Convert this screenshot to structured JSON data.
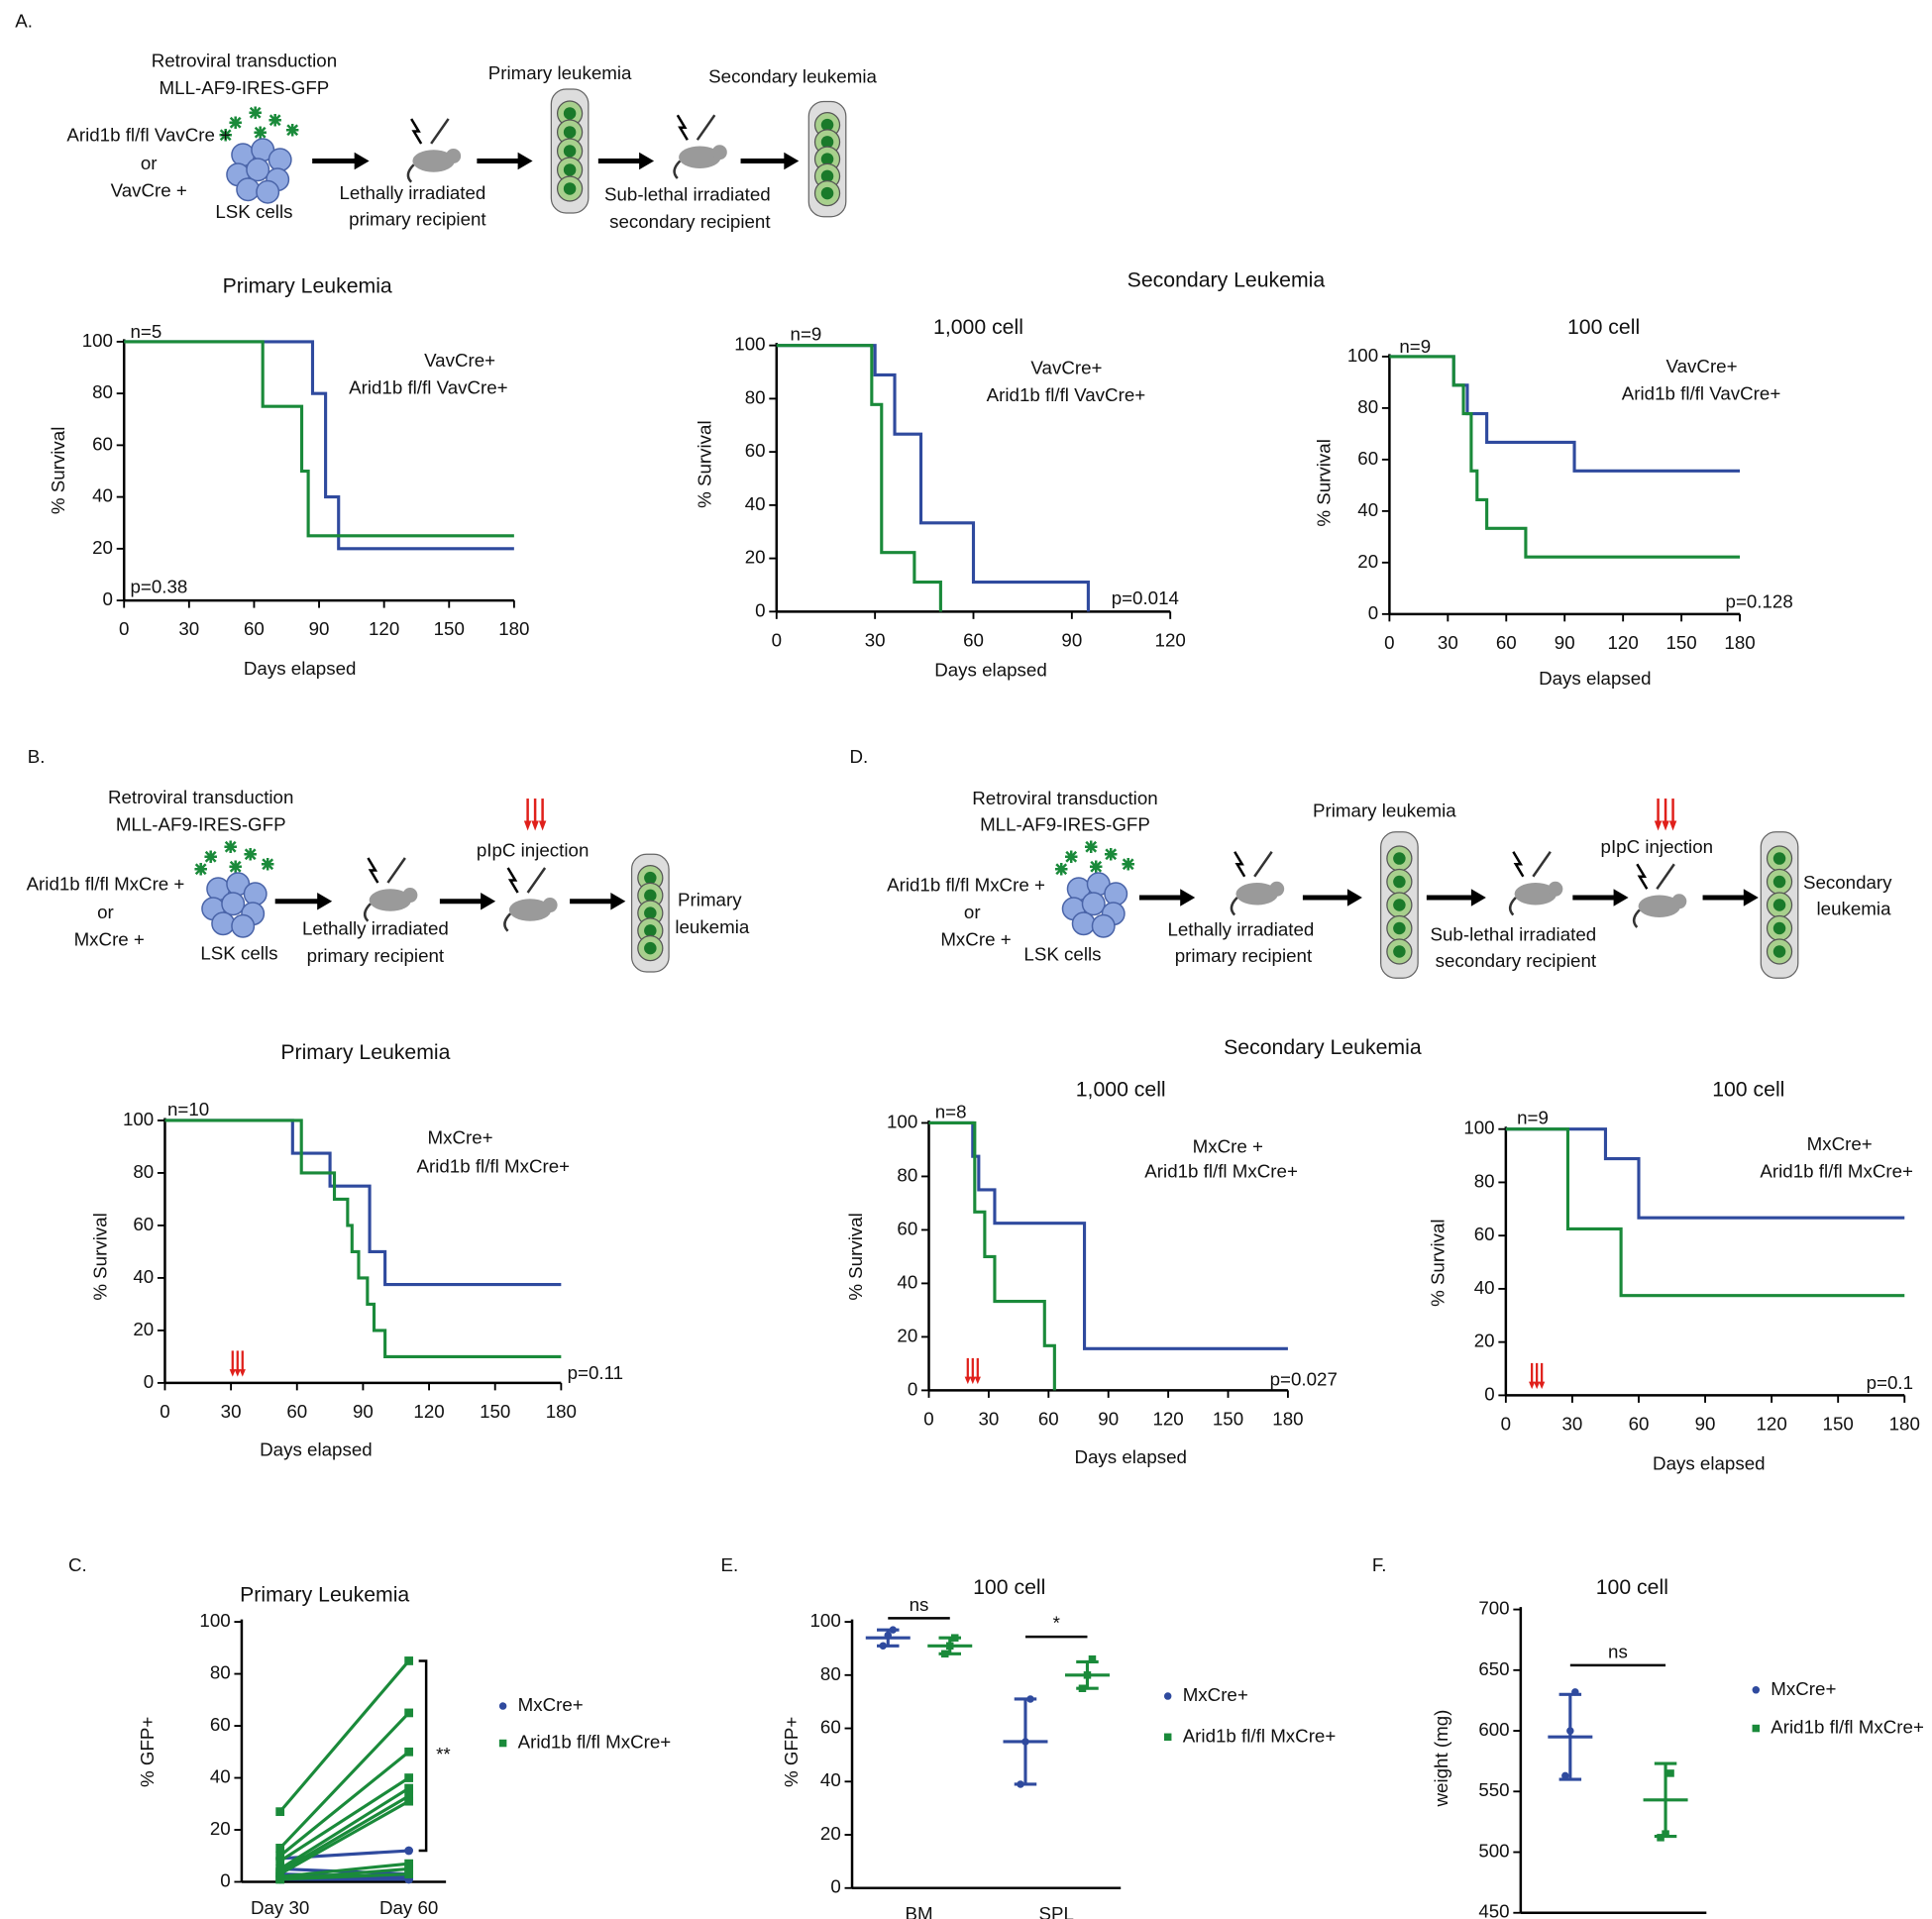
{
  "labels": {
    "panels": [
      "A.",
      "B.",
      "C.",
      "D.",
      "E.",
      "F."
    ],
    "secondary_a": "Secondary Leukemia",
    "secondary_d": "Secondary Leukemia"
  },
  "diagrams": {
    "a": [
      "Retroviral transduction",
      "MLL-AF9-IRES-GFP",
      "Arid1b fl/fl VavCre +",
      "or",
      "VavCre +",
      "LSK cells",
      "Lethally irradiated",
      "primary recipient",
      "Primary leukemia",
      "Secondary leukemia",
      "Sub-lethal irradiated",
      "secondary recipient"
    ],
    "b": [
      "Retroviral transduction",
      "MLL-AF9-IRES-GFP",
      "Arid1b fl/fl MxCre +",
      "or",
      "MxCre +",
      "LSK cells",
      "Lethally irradiated",
      "primary recipient",
      "pIpC injection",
      "Primary",
      "leukemia"
    ],
    "d": [
      "Retroviral transduction",
      "MLL-AF9-IRES-GFP",
      "Arid1b fl/fl MxCre +",
      "or",
      "MxCre +",
      "LSK cells",
      "Lethally irradiated",
      "primary recipient",
      "Primary leukemia",
      "Sub-lethal irradiated",
      "secondary recipient",
      "pIpC injection",
      "Secondary",
      "leukemia"
    ]
  },
  "chart_data": [
    {
      "type": "step",
      "title": "Primary Leukemia",
      "xlabel": "Days elapsed",
      "ylabel": "% Survival",
      "n_label": "n=5",
      "p_label": "p=0.38",
      "xlim": [
        0,
        180
      ],
      "ylim": [
        0,
        100
      ],
      "xticks": [
        0,
        30,
        60,
        90,
        120,
        150,
        180
      ],
      "yticks": [
        0,
        20,
        40,
        60,
        80,
        100
      ],
      "series": [
        {
          "name": "VavCre+",
          "color": "#2f4a9e",
          "x": [
            0,
            87,
            93,
            99,
            180
          ],
          "values": [
            100,
            80,
            40,
            20,
            20
          ]
        },
        {
          "name": "Arid1b fl/fl VavCre+",
          "color": "#1a8a3a",
          "x": [
            0,
            64,
            82,
            85,
            180
          ],
          "values": [
            100,
            75,
            50,
            25,
            25
          ]
        }
      ]
    },
    {
      "type": "step",
      "subtitle": "1,000 cell",
      "xlabel": "Days elapsed",
      "ylabel": "% Survival",
      "n_label": "n=9",
      "p_label": "p=0.014",
      "xlim": [
        0,
        120
      ],
      "ylim": [
        0,
        100
      ],
      "xticks": [
        0,
        30,
        60,
        90,
        120
      ],
      "yticks": [
        0,
        20,
        40,
        60,
        80,
        100
      ],
      "series": [
        {
          "name": "VavCre+",
          "color": "#2f4a9e",
          "x": [
            0,
            30,
            36,
            44,
            60,
            95
          ],
          "values": [
            100,
            88.9,
            66.7,
            33.3,
            11.1,
            0
          ]
        },
        {
          "name": "Arid1b fl/fl VavCre+",
          "color": "#1a8a3a",
          "x": [
            0,
            29,
            32,
            42,
            50
          ],
          "values": [
            100,
            77.8,
            22.2,
            11.1,
            0
          ]
        }
      ]
    },
    {
      "type": "step",
      "subtitle": "100 cell",
      "xlabel": "Days elapsed",
      "ylabel": "% Survival",
      "n_label": "n=9",
      "p_label": "p=0.128",
      "xlim": [
        0,
        180
      ],
      "ylim": [
        0,
        100
      ],
      "xticks": [
        0,
        30,
        60,
        90,
        120,
        150,
        180
      ],
      "yticks": [
        0,
        20,
        40,
        60,
        80,
        100
      ],
      "series": [
        {
          "name": "VavCre+",
          "color": "#2f4a9e",
          "x": [
            0,
            33,
            40,
            50,
            95,
            180
          ],
          "values": [
            100,
            88.9,
            77.8,
            66.7,
            55.6,
            55.6
          ]
        },
        {
          "name": "Arid1b fl/fl VavCre+",
          "color": "#1a8a3a",
          "x": [
            0,
            33,
            38,
            42,
            45,
            50,
            70,
            180
          ],
          "values": [
            100,
            88.9,
            77.8,
            55.6,
            44.4,
            33.3,
            22.2,
            22.2
          ]
        }
      ]
    },
    {
      "type": "step",
      "title": "Primary Leukemia",
      "xlabel": "Days elapsed",
      "ylabel": "% Survival",
      "n_label": "n=10",
      "p_label": "p=0.11",
      "injection_day": 33,
      "xlim": [
        0,
        180
      ],
      "ylim": [
        0,
        100
      ],
      "xticks": [
        0,
        30,
        60,
        90,
        120,
        150,
        180
      ],
      "yticks": [
        0,
        20,
        40,
        60,
        80,
        100
      ],
      "series": [
        {
          "name": "MxCre+",
          "color": "#2f4a9e",
          "x": [
            0,
            58,
            75,
            93,
            100,
            180
          ],
          "values": [
            100,
            87.5,
            75,
            50,
            37.5,
            37.5
          ]
        },
        {
          "name": "Arid1b fl/fl MxCre+",
          "color": "#1a8a3a",
          "x": [
            0,
            62,
            77,
            83,
            85,
            88,
            92,
            95,
            100,
            180
          ],
          "values": [
            100,
            80,
            70,
            60,
            50,
            40,
            30,
            20,
            10,
            10
          ]
        }
      ]
    },
    {
      "type": "step",
      "subtitle": "1,000 cell",
      "xlabel": "Days elapsed",
      "ylabel": "% Survival",
      "n_label": "n=8",
      "p_label": "p=0.027",
      "injection_day": 22,
      "xlim": [
        0,
        180
      ],
      "ylim": [
        0,
        100
      ],
      "xticks": [
        0,
        30,
        60,
        90,
        120,
        150,
        180
      ],
      "yticks": [
        0,
        20,
        40,
        60,
        80,
        100
      ],
      "series": [
        {
          "name": "MxCre +",
          "color": "#2f4a9e",
          "x": [
            0,
            22,
            25,
            33,
            78,
            180
          ],
          "values": [
            100,
            87.5,
            75,
            62.5,
            15.6,
            15.6
          ]
        },
        {
          "name": "Arid1b fl/fl MxCre+",
          "color": "#1a8a3a",
          "x": [
            0,
            23,
            28,
            33,
            58,
            63
          ],
          "values": [
            100,
            66.7,
            50,
            33.3,
            16.7,
            0
          ]
        }
      ]
    },
    {
      "type": "step",
      "subtitle": "100 cell",
      "xlabel": "Days elapsed",
      "ylabel": "% Survival",
      "n_label": "n=9",
      "p_label": "p=0.1",
      "injection_day": 14,
      "xlim": [
        0,
        180
      ],
      "ylim": [
        0,
        100
      ],
      "xticks": [
        0,
        30,
        60,
        90,
        120,
        150,
        180
      ],
      "yticks": [
        0,
        20,
        40,
        60,
        80,
        100
      ],
      "series": [
        {
          "name": "MxCre+",
          "color": "#2f4a9e",
          "x": [
            0,
            45,
            60,
            180
          ],
          "values": [
            100,
            88.9,
            66.7,
            66.7
          ]
        },
        {
          "name": "Arid1b fl/fl MxCre+",
          "color": "#1a8a3a",
          "x": [
            0,
            28,
            52,
            180
          ],
          "values": [
            100,
            62.5,
            37.5,
            37.5
          ]
        }
      ]
    },
    {
      "type": "paired",
      "title": "Primary Leukemia",
      "ylabel": "% GFP+",
      "categories": [
        "Day 30",
        "Day 60"
      ],
      "significance": "**",
      "ylim": [
        0,
        100
      ],
      "yticks": [
        0,
        20,
        40,
        60,
        80,
        100
      ],
      "series": [
        {
          "name": "MxCre+",
          "color": "#2f4a9e",
          "values": [
            [
              9,
              12
            ],
            [
              5,
              3
            ],
            [
              3,
              2
            ],
            [
              2,
              1
            ],
            [
              1,
              1
            ]
          ]
        },
        {
          "name": "Arid1b fl/fl MxCre+",
          "color": "#1a8a3a",
          "values": [
            [
              27,
              85
            ],
            [
              13,
              65
            ],
            [
              10,
              50
            ],
            [
              8,
              40
            ],
            [
              5,
              36
            ],
            [
              4,
              33
            ],
            [
              3,
              31
            ],
            [
              2,
              7
            ],
            [
              1,
              5
            ],
            [
              1,
              3
            ]
          ]
        }
      ]
    },
    {
      "type": "dot",
      "title": "100 cell",
      "ylabel": "% GFP+",
      "categories": [
        "BM",
        "SPL"
      ],
      "significance": [
        "ns",
        "*"
      ],
      "ylim": [
        0,
        100
      ],
      "yticks": [
        0,
        20,
        40,
        60,
        80,
        100
      ],
      "series": [
        {
          "name": "MxCre+",
          "color": "#2f4a9e",
          "values": [
            94,
            55
          ],
          "errors": [
            3,
            16
          ],
          "points": [
            [
              91,
              95,
              97
            ],
            [
              39,
              55,
              71
            ]
          ]
        },
        {
          "name": "Arid1b fl/fl MxCre+",
          "color": "#1a8a3a",
          "values": [
            91,
            80
          ],
          "errors": [
            3,
            5
          ],
          "points": [
            [
              88,
              91,
              94
            ],
            [
              75,
              80,
              86
            ]
          ]
        }
      ]
    },
    {
      "type": "dot",
      "title": "100 cell",
      "ylabel": "weight (mg)",
      "significance": [
        "ns"
      ],
      "ylim": [
        450,
        700
      ],
      "yticks": [
        450,
        500,
        550,
        600,
        650,
        700
      ],
      "series": [
        {
          "name": "MxCre+",
          "color": "#2f4a9e",
          "values": [
            595
          ],
          "errors": [
            35
          ],
          "points": [
            [
              563,
              600,
              632
            ]
          ]
        },
        {
          "name": "Arid1b fl/fl MxCre+",
          "color": "#1a8a3a",
          "values": [
            543
          ],
          "errors": [
            30
          ],
          "points": [
            [
              512,
              515,
              565
            ]
          ]
        }
      ]
    }
  ]
}
